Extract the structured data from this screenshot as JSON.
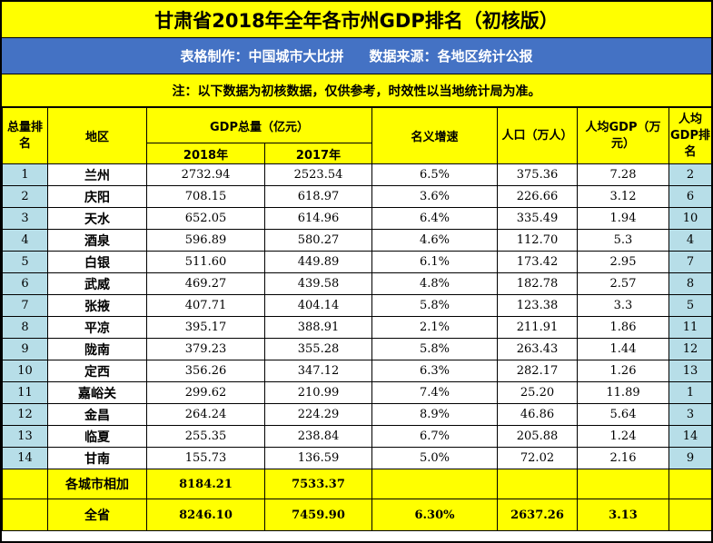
{
  "title": "甘肃省2018年全年各市州GDP排名（初核版）",
  "credit": {
    "maker": "表格制作：中国城市大比拼",
    "source": "数据来源：各地区统计公报"
  },
  "note": "注：以下数据为初核数据，仅供参考，时效性以当地统计局为准。",
  "headers": {
    "rank": "总量排名",
    "region": "地区",
    "gdp_total": "GDP总量（亿元）",
    "y2018": "2018年",
    "y2017": "2017年",
    "growth": "名义增速",
    "population": "人口（万人）",
    "per_capita": "人均GDP（万元）",
    "per_capita_rank": "人均GDP排名"
  },
  "rows": [
    [
      "1",
      "兰州",
      "2732.94",
      "2523.54",
      "6.5%",
      "375.36",
      "7.28",
      "2"
    ],
    [
      "2",
      "庆阳",
      "708.15",
      "618.97",
      "3.6%",
      "226.66",
      "3.12",
      "6"
    ],
    [
      "3",
      "天水",
      "652.05",
      "614.96",
      "6.4%",
      "335.49",
      "1.94",
      "10"
    ],
    [
      "4",
      "酒泉",
      "596.89",
      "580.27",
      "4.6%",
      "112.70",
      "5.3",
      "4"
    ],
    [
      "5",
      "白银",
      "511.60",
      "449.89",
      "6.1%",
      "173.42",
      "2.95",
      "7"
    ],
    [
      "6",
      "武威",
      "469.27",
      "439.58",
      "4.8%",
      "182.78",
      "2.57",
      "8"
    ],
    [
      "7",
      "张掖",
      "407.71",
      "404.14",
      "5.8%",
      "123.38",
      "3.3",
      "5"
    ],
    [
      "8",
      "平凉",
      "395.17",
      "388.91",
      "2.1%",
      "211.91",
      "1.86",
      "11"
    ],
    [
      "9",
      "陇南",
      "379.23",
      "355.28",
      "5.8%",
      "263.43",
      "1.44",
      "12"
    ],
    [
      "10",
      "定西",
      "356.26",
      "347.12",
      "6.3%",
      "282.17",
      "1.26",
      "13"
    ],
    [
      "11",
      "嘉峪关",
      "299.62",
      "210.99",
      "7.4%",
      "25.20",
      "11.89",
      "1"
    ],
    [
      "12",
      "金昌",
      "264.24",
      "224.29",
      "8.9%",
      "46.86",
      "5.64",
      "3"
    ],
    [
      "13",
      "临夏",
      "255.35",
      "238.84",
      "6.7%",
      "205.88",
      "1.24",
      "14"
    ],
    [
      "14",
      "甘南",
      "155.73",
      "136.59",
      "5.0%",
      "72.02",
      "2.16",
      "9"
    ]
  ],
  "sum_cities": {
    "label": "各城市相加",
    "y2018": "8184.21",
    "y2017": "7533.37"
  },
  "province": {
    "label": "全省",
    "y2018": "8246.10",
    "y2017": "7459.90",
    "growth": "6.30%",
    "population": "2637.26",
    "per_capita": "3.13"
  },
  "chart_data": {
    "type": "table",
    "title": "甘肃省2018年全年各市州GDP排名（初核版）",
    "columns": [
      "总量排名",
      "地区",
      "GDP总量2018年（亿元）",
      "GDP总量2017年（亿元）",
      "名义增速",
      "人口（万人）",
      "人均GDP（万元）",
      "人均GDP排名"
    ],
    "rows": [
      [
        1,
        "兰州",
        2732.94,
        2523.54,
        "6.5%",
        375.36,
        7.28,
        2
      ],
      [
        2,
        "庆阳",
        708.15,
        618.97,
        "3.6%",
        226.66,
        3.12,
        6
      ],
      [
        3,
        "天水",
        652.05,
        614.96,
        "6.4%",
        335.49,
        1.94,
        10
      ],
      [
        4,
        "酒泉",
        596.89,
        580.27,
        "4.6%",
        112.7,
        5.3,
        4
      ],
      [
        5,
        "白银",
        511.6,
        449.89,
        "6.1%",
        173.42,
        2.95,
        7
      ],
      [
        6,
        "武威",
        469.27,
        439.58,
        "4.8%",
        182.78,
        2.57,
        8
      ],
      [
        7,
        "张掖",
        407.71,
        404.14,
        "5.8%",
        123.38,
        3.3,
        5
      ],
      [
        8,
        "平凉",
        395.17,
        388.91,
        "2.1%",
        211.91,
        1.86,
        11
      ],
      [
        9,
        "陇南",
        379.23,
        355.28,
        "5.8%",
        263.43,
        1.44,
        12
      ],
      [
        10,
        "定西",
        356.26,
        347.12,
        "6.3%",
        282.17,
        1.26,
        13
      ],
      [
        11,
        "嘉峪关",
        299.62,
        210.99,
        "7.4%",
        25.2,
        11.89,
        1
      ],
      [
        12,
        "金昌",
        264.24,
        224.29,
        "8.9%",
        46.86,
        5.64,
        3
      ],
      [
        13,
        "临夏",
        255.35,
        238.84,
        "6.7%",
        205.88,
        1.24,
        14
      ],
      [
        14,
        "甘南",
        155.73,
        136.59,
        "5.0%",
        72.02,
        2.16,
        9
      ]
    ],
    "totals": [
      [
        "各城市相加",
        8184.21,
        7533.37
      ],
      [
        "全省",
        8246.1,
        7459.9,
        "6.30%",
        2637.26,
        3.13
      ]
    ]
  }
}
